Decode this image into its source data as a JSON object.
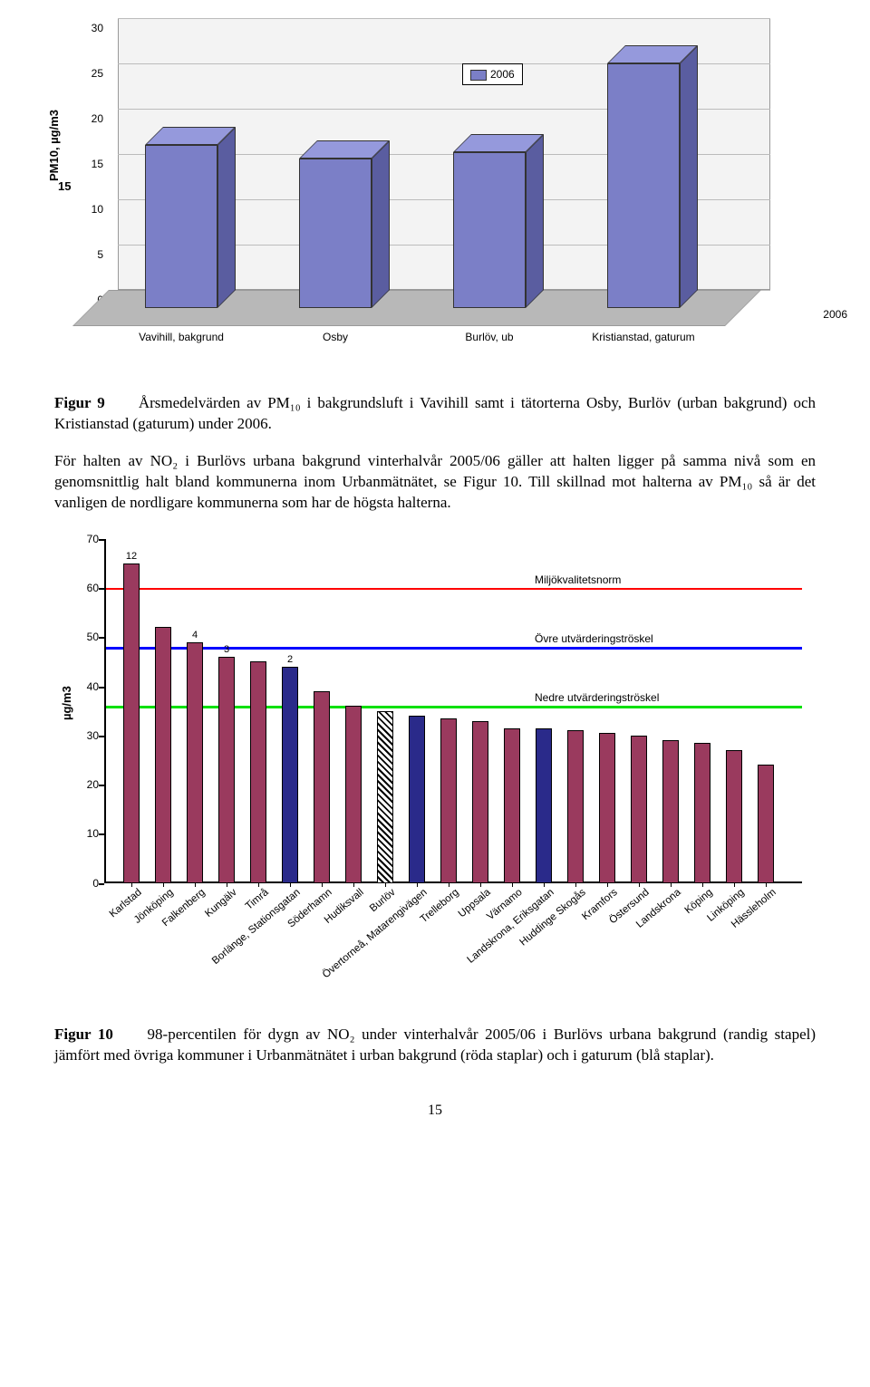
{
  "chart1": {
    "type": "bar3d",
    "y_axis_label": "PM10, µg/m3",
    "ylim": [
      0,
      30
    ],
    "ytick_step": 5,
    "yticks": [
      0,
      5,
      10,
      15,
      20,
      25,
      30
    ],
    "categories": [
      "Vavihill, bakgrund",
      "Osby",
      "Burlöv, ub",
      "Kristianstad, gaturum"
    ],
    "values": [
      18,
      16.5,
      17.2,
      27
    ],
    "z_label": "2006",
    "legend_label": "2006",
    "bar_color": "#7b7fc7",
    "bar_side_color": "#5a5da0",
    "bar_top_color": "#9599dc",
    "floor_color": "#b8b8b8",
    "back_color": "#f3f3f3"
  },
  "para1": {
    "figure_label": "Figur 9",
    "text": "Årsmedelvärden av PM₁₀ i bakgrundsluft i Vavihill samt i tätorterna Osby, Burlöv (urban bakgrund) och Kristianstad (gaturum) under 2006."
  },
  "para2": "För halten av NO₂ i Burlövs urbana bakgrund vinterhalvår 2005/06 gäller att halten ligger på samma nivå som en genomsnittlig halt bland kommunerna inom Urbanmätnätet, se Figur 10. Till skillnad mot halterna av PM₁₀ så är det vanligen de nordligare kommunerna som har de högsta halterna.",
  "chart2": {
    "type": "bar",
    "y_axis_label": "µg/m3",
    "ylim": [
      0,
      70
    ],
    "ytick_step": 10,
    "yticks": [
      0,
      10,
      20,
      30,
      40,
      50,
      60,
      70
    ],
    "reflines": [
      {
        "value": 60,
        "color": "#ff0000",
        "label": "Miljökvalitetsnorm"
      },
      {
        "value": 48,
        "color": "#0000ff",
        "label": "Övre utvärderingströskel"
      },
      {
        "value": 36,
        "color": "#00e000",
        "label": "Nedre utvärderingströskel"
      }
    ],
    "bar_color_default": "#9a3a5e",
    "bar_color_blue": "#2a2a8a",
    "bars": [
      {
        "label": "Karlstad",
        "value": 65,
        "color": "#9a3a5e",
        "num": "12"
      },
      {
        "label": "Jönköping",
        "value": 52,
        "color": "#9a3a5e"
      },
      {
        "label": "Falkenberg",
        "value": 49,
        "color": "#9a3a5e",
        "num": "4"
      },
      {
        "label": "Kungälv",
        "value": 46,
        "color": "#9a3a5e",
        "num": "3"
      },
      {
        "label": "Timrå",
        "value": 45,
        "color": "#9a3a5e"
      },
      {
        "label": "Borlänge, Stationsgatan",
        "value": 44,
        "color": "#2a2a8a",
        "num": "2"
      },
      {
        "label": "Söderhamn",
        "value": 39,
        "color": "#9a3a5e"
      },
      {
        "label": "Hudiksvall",
        "value": 36,
        "color": "#9a3a5e"
      },
      {
        "label": "Burlöv",
        "value": 35,
        "pattern": "hatched"
      },
      {
        "label": "Övertorneå, Matarengivägen",
        "value": 34,
        "color": "#2a2a8a"
      },
      {
        "label": "Trelleborg",
        "value": 33.5,
        "color": "#9a3a5e"
      },
      {
        "label": "Uppsala",
        "value": 33,
        "color": "#9a3a5e"
      },
      {
        "label": "Värnamo",
        "value": 31.5,
        "color": "#9a3a5e"
      },
      {
        "label": "Landskrona, Eriksgatan",
        "value": 31.5,
        "color": "#2a2a8a"
      },
      {
        "label": "Huddinge Skogås",
        "value": 31,
        "color": "#9a3a5e"
      },
      {
        "label": "Kramfors",
        "value": 30.5,
        "color": "#9a3a5e"
      },
      {
        "label": "Östersund",
        "value": 30,
        "color": "#9a3a5e"
      },
      {
        "label": "Landskrona",
        "value": 29,
        "color": "#9a3a5e"
      },
      {
        "label": "Köping",
        "value": 28.5,
        "color": "#9a3a5e"
      },
      {
        "label": "Linköping",
        "value": 27,
        "color": "#9a3a5e"
      },
      {
        "label": "Hässleholm",
        "value": 24,
        "color": "#9a3a5e"
      }
    ]
  },
  "para3": {
    "figure_label": "Figur 10",
    "text": "98-percentilen för dygn av NO₂ under vinterhalvår 2005/06 i Burlövs urbana bakgrund (randig stapel) jämfört med övriga kommuner i Urbanmätnätet i urban bakgrund (röda staplar) och i gaturum (blå staplar)."
  },
  "page_number": "15"
}
